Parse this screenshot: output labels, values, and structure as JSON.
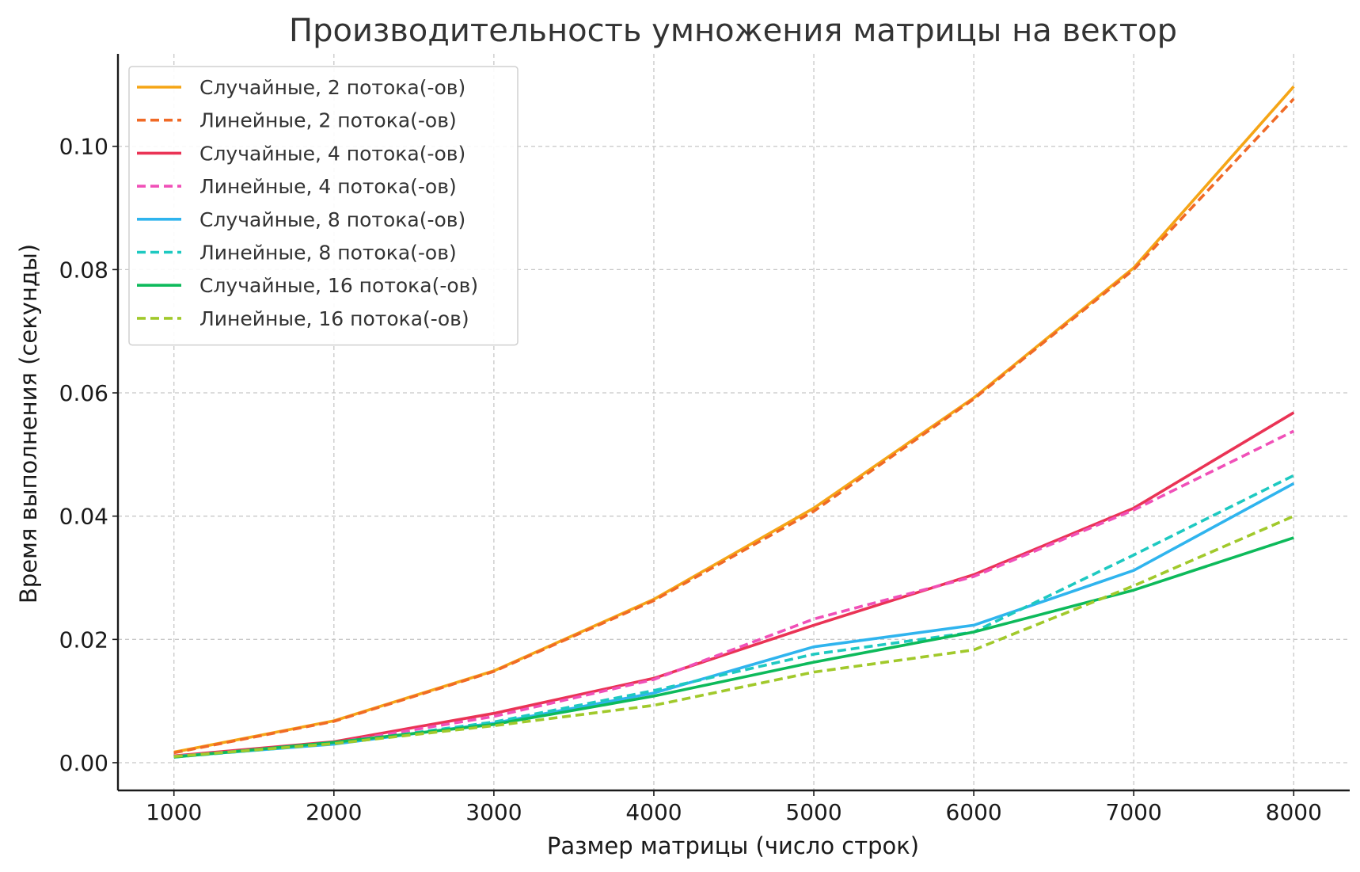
{
  "chart_data": {
    "type": "line",
    "title": "Производительность умножения матрицы на вектор",
    "xlabel": "Размер матрицы (число строк)",
    "ylabel": "Время выполнения (секунды)",
    "x": [
      1000,
      2000,
      3000,
      4000,
      5000,
      6000,
      7000,
      8000
    ],
    "xlim": [
      650,
      8350
    ],
    "ylim": [
      -0.0045,
      0.115
    ],
    "xticks": [
      1000,
      2000,
      3000,
      4000,
      5000,
      6000,
      7000,
      8000
    ],
    "yticks": [
      0.0,
      0.02,
      0.04,
      0.06,
      0.08,
      0.1
    ],
    "grid": true,
    "legend_position": "top-left",
    "series": [
      {
        "name": "Случайные, 2 потока(-ов)",
        "color": "#F5A516",
        "dashed": false,
        "values": [
          0.0017,
          0.0068,
          0.0149,
          0.0265,
          0.0413,
          0.0592,
          0.0803,
          0.1097
        ]
      },
      {
        "name": "Линейные, 2 потока(-ов)",
        "color": "#F06A26",
        "dashed": true,
        "values": [
          0.0016,
          0.0067,
          0.0148,
          0.0263,
          0.0408,
          0.059,
          0.08,
          0.1077
        ]
      },
      {
        "name": "Случайные, 4 потока(-ов)",
        "color": "#EA3355",
        "dashed": false,
        "values": [
          0.0011,
          0.0034,
          0.008,
          0.0137,
          0.0223,
          0.0305,
          0.0413,
          0.0568
        ]
      },
      {
        "name": "Линейные, 4 потока(-ов)",
        "color": "#F050B8",
        "dashed": true,
        "values": [
          0.001,
          0.0032,
          0.0075,
          0.0135,
          0.0233,
          0.0302,
          0.041,
          0.0538
        ]
      },
      {
        "name": "Случайные, 8 потока(-ов)",
        "color": "#2FB4EE",
        "dashed": false,
        "values": [
          0.001,
          0.003,
          0.0064,
          0.0113,
          0.0188,
          0.0223,
          0.0312,
          0.0453
        ]
      },
      {
        "name": "Линейные, 8 потока(-ов)",
        "color": "#1EC9C1",
        "dashed": true,
        "values": [
          0.0009,
          0.0031,
          0.0066,
          0.0117,
          0.0176,
          0.0212,
          0.0337,
          0.0466
        ]
      },
      {
        "name": "Случайные, 16 потока(-ов)",
        "color": "#0DBA5B",
        "dashed": false,
        "values": [
          0.0009,
          0.0033,
          0.0062,
          0.0108,
          0.0163,
          0.0212,
          0.028,
          0.0365
        ]
      },
      {
        "name": "Линейные, 16 потока(-ов)",
        "color": "#A1C92B",
        "dashed": true,
        "values": [
          0.001,
          0.0031,
          0.006,
          0.0093,
          0.0147,
          0.0183,
          0.0287,
          0.04
        ]
      }
    ]
  }
}
